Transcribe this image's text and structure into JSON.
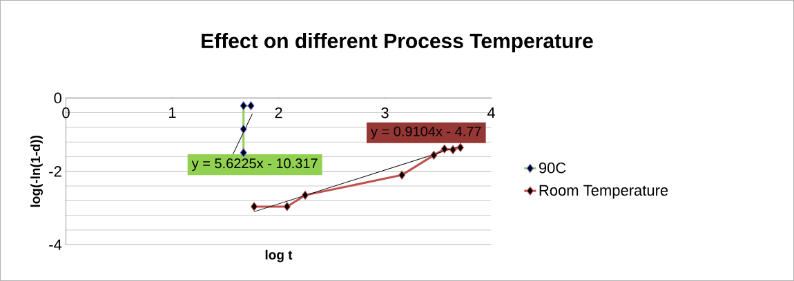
{
  "chart_data": {
    "type": "line",
    "title": "Effect on different Process Temperature",
    "xlabel": "log t",
    "ylabel": "log(-ln(1-d))",
    "xlim": [
      0,
      4
    ],
    "ylim": [
      -4,
      0
    ],
    "xticks": [
      0,
      1,
      2,
      3,
      4
    ],
    "yticks": [
      -4,
      -2,
      0
    ],
    "grid": "y",
    "legend": "right",
    "marker": "diamond",
    "series": [
      {
        "name": "90C",
        "color": "#92d050",
        "x": [
          1.67,
          1.67,
          1.67,
          1.74
        ],
        "values": [
          -1.49,
          -0.85,
          -0.21,
          -0.21
        ]
      },
      {
        "name": "Room Temperature",
        "color": "#c0504d",
        "x": [
          1.77,
          2.08,
          2.25,
          3.16,
          3.46,
          3.56,
          3.64,
          3.71
        ],
        "values": [
          -2.96,
          -2.96,
          -2.65,
          -2.1,
          -1.56,
          -1.39,
          -1.41,
          -1.35
        ]
      },
      {
        "type": "line",
        "color": "#000000",
        "marker": "none",
        "x": [
          1.565,
          1.753
        ],
        "values": [
          -1.57,
          -0.43
        ]
      },
      {
        "type": "line",
        "color": "#000000",
        "marker": "none",
        "x": [
          1.77,
          3.71
        ],
        "values": [
          -3.1,
          -1.31
        ]
      }
    ],
    "annotations": [
      "y = 5.6225x - 10.317",
      "y = 0.9104x - 4.77"
    ]
  }
}
